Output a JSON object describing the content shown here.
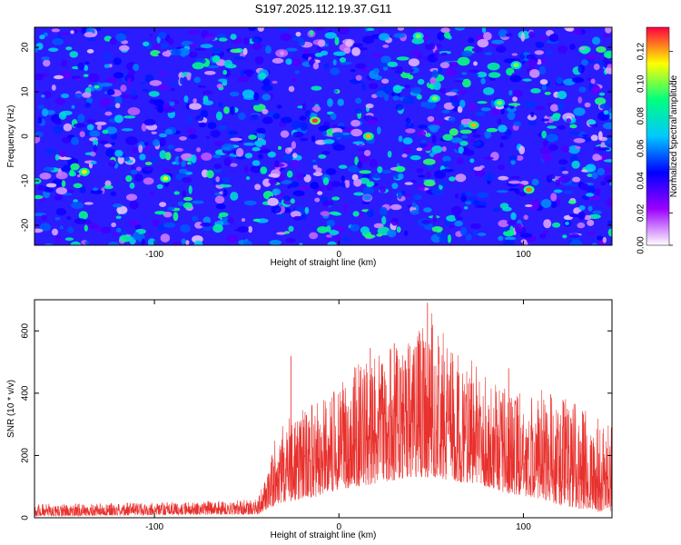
{
  "page": {
    "title": "S197.2025.112.19.37.G11"
  },
  "chart_data": [
    {
      "type": "heatmap",
      "xlabel": "Height of straight line (km)",
      "ylabel": "Frequency (Hz)",
      "xlim": [
        -165,
        148
      ],
      "ylim": [
        -24.5,
        24.5
      ],
      "xticks": [
        -100,
        0,
        100
      ],
      "yticks": [
        -20,
        -10,
        0,
        10,
        20
      ],
      "colorbar": {
        "label": "Normalized spectral amplitude",
        "range": [
          0,
          0.135
        ],
        "ticks": [
          0.0,
          0.02,
          0.04,
          0.06,
          0.08,
          0.1,
          0.12
        ],
        "tick_labels": [
          "0.00",
          "0.02",
          "0.04",
          "0.06",
          "0.08",
          "0.10",
          "0.12"
        ],
        "colors": [
          "#ffffff",
          "#9b00ff",
          "#0000ff",
          "#00c8ff",
          "#00ff80",
          "#ffff00",
          "#ff0040"
        ]
      },
      "peaks": [
        {
          "x": -13,
          "y": 3.5,
          "value": 0.13
        },
        {
          "x": 16,
          "y": 0,
          "value": 0.12
        },
        {
          "x": 103,
          "y": -12,
          "value": 0.125
        },
        {
          "x": 73,
          "y": 2.5,
          "value": 0.12
        },
        {
          "x": -138,
          "y": -8,
          "value": 0.115
        },
        {
          "x": -94,
          "y": -9.5,
          "value": 0.11
        },
        {
          "x": 87,
          "y": 7.5,
          "value": 0.1
        },
        {
          "x": 52,
          "y": 8.5,
          "value": 0.1
        },
        {
          "x": 43,
          "y": 22.5,
          "value": 0.1
        },
        {
          "x": 96,
          "y": 16,
          "value": 0.1
        }
      ],
      "background_level": 0.025,
      "grid": false
    },
    {
      "type": "line",
      "xlabel": "Height of straight line (km)",
      "ylabel": "SNR (10 * v/v)",
      "xlim": [
        -165,
        148
      ],
      "ylim": [
        0,
        700
      ],
      "xticks": [
        -100,
        0,
        100
      ],
      "yticks": [
        0,
        200,
        400,
        600
      ],
      "series": [
        {
          "color": "#e8302c",
          "envelope_x": [
            -165,
            -150,
            -100,
            -60,
            -45,
            -38,
            -35,
            -30,
            -20,
            -10,
            0,
            10,
            20,
            30,
            40,
            50,
            60,
            70,
            80,
            90,
            100,
            110,
            120,
            130,
            140,
            148
          ],
          "envelope_min": [
            5,
            5,
            8,
            10,
            10,
            20,
            40,
            50,
            60,
            70,
            90,
            100,
            110,
            120,
            130,
            130,
            120,
            110,
            100,
            80,
            70,
            60,
            40,
            30,
            20,
            20
          ],
          "envelope_max": [
            45,
            45,
            50,
            55,
            60,
            150,
            260,
            320,
            350,
            380,
            420,
            500,
            540,
            560,
            560,
            690,
            550,
            520,
            450,
            420,
            400,
            420,
            400,
            360,
            320,
            300
          ],
          "spikes": [
            {
              "x": 48,
              "y": 690
            },
            {
              "x": -26,
              "y": 520
            },
            {
              "x": 30,
              "y": 560
            },
            {
              "x": 17,
              "y": 545
            },
            {
              "x": 92,
              "y": 480
            }
          ]
        }
      ],
      "grid": false
    }
  ]
}
